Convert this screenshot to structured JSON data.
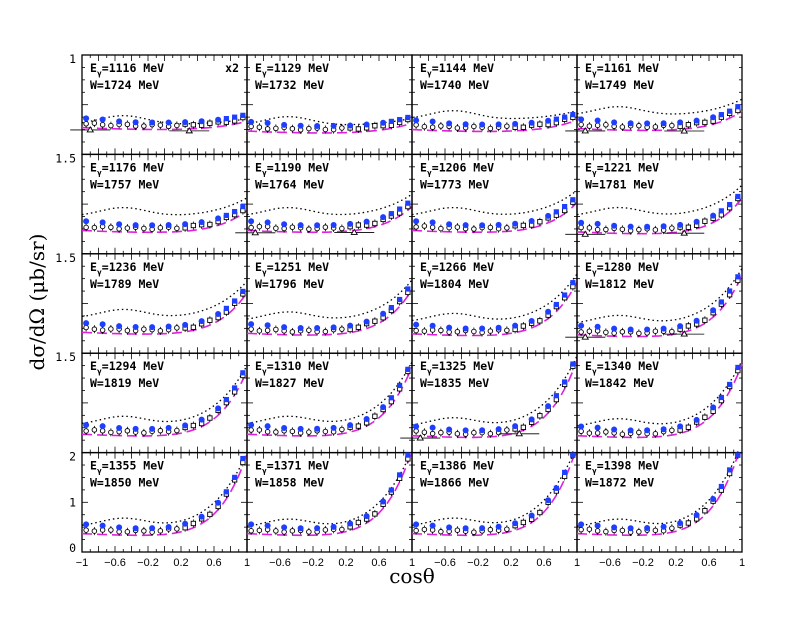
{
  "chart_data": {
    "type": "scatter",
    "layout": "4x5 panel grid",
    "xlabel": "cosθ",
    "ylabel": "dσ/dΩ (μb/sr)",
    "xlim": [
      -1,
      1
    ],
    "x_ticks": [
      "−1",
      "−0.6",
      "−0.2",
      "0.2",
      "0.6",
      "1"
    ],
    "x_ticks_inner": [
      "−0.6",
      "−0.2",
      "0.2",
      "0.6",
      "1"
    ],
    "y_ticks_panel1": [
      "1"
    ],
    "y_ticks_mid": [
      "1.5"
    ],
    "y_ticks_bottom": [
      "2",
      "1",
      "0"
    ],
    "colors": {
      "blue_points": "#1f3fff",
      "magenta_dash": "#e020e0",
      "dotted": "#000000",
      "data": "#000000"
    },
    "series_styles": [
      {
        "style": "filled blue circles"
      },
      {
        "style": "magenta dashed line"
      },
      {
        "style": "black dotted line"
      },
      {
        "style": "open black circles with error bars"
      },
      {
        "style": "open black squares with error bars"
      },
      {
        "style": "open triangles with horizontal bars"
      }
    ],
    "panels": [
      {
        "E": "E",
        "Esub": "γ",
        "Eval": "=1116 MeV",
        "W": "W=1724 MeV",
        "note": "x2",
        "base": 0.62,
        "dot": 0.6,
        "curv": 0.08
      },
      {
        "E": "E",
        "Esub": "γ",
        "Eval": "=1129 MeV",
        "W": "W=1732 MeV",
        "note": "",
        "base": 0.55,
        "dot": 0.58,
        "curv": 0.1
      },
      {
        "E": "E",
        "Esub": "γ",
        "Eval": "=1144 MeV",
        "W": "W=1740 MeV",
        "note": "",
        "base": 0.58,
        "dot": 0.7,
        "curv": 0.12
      },
      {
        "E": "E",
        "Esub": "γ",
        "Eval": "=1161 MeV",
        "W": "W=1749 MeV",
        "note": "",
        "base": 0.6,
        "dot": 0.78,
        "curv": 0.22
      },
      {
        "E": "E",
        "Esub": "γ",
        "Eval": "=1176 MeV",
        "W": "W=1757 MeV",
        "note": "",
        "base": 0.55,
        "dot": 0.75,
        "curv": 0.25
      },
      {
        "E": "E",
        "Esub": "γ",
        "Eval": "=1190 MeV",
        "W": "W=1764 MeV",
        "note": "",
        "base": 0.55,
        "dot": 0.75,
        "curv": 0.3
      },
      {
        "E": "E",
        "Esub": "γ",
        "Eval": "=1206 MeV",
        "W": "W=1773 MeV",
        "note": "",
        "base": 0.55,
        "dot": 0.75,
        "curv": 0.35
      },
      {
        "E": "E",
        "Esub": "γ",
        "Eval": "=1221 MeV",
        "W": "W=1781 MeV",
        "note": "",
        "base": 0.52,
        "dot": 0.75,
        "curv": 0.42
      },
      {
        "E": "E",
        "Esub": "γ",
        "Eval": "=1236 MeV",
        "W": "W=1789 MeV",
        "note": "",
        "base": 0.5,
        "dot": 0.7,
        "curv": 0.5
      },
      {
        "E": "E",
        "Esub": "γ",
        "Eval": "=1251 MeV",
        "W": "W=1796 MeV",
        "note": "",
        "base": 0.48,
        "dot": 0.65,
        "curv": 0.55
      },
      {
        "E": "E",
        "Esub": "γ",
        "Eval": "=1266 MeV",
        "W": "W=1804 MeV",
        "note": "",
        "base": 0.47,
        "dot": 0.62,
        "curv": 0.65
      },
      {
        "E": "E",
        "Esub": "γ",
        "Eval": "=1280 MeV",
        "W": "W=1812 MeV",
        "note": "",
        "base": 0.45,
        "dot": 0.58,
        "curv": 0.75
      },
      {
        "E": "E",
        "Esub": "γ",
        "Eval": "=1294 MeV",
        "W": "W=1819 MeV",
        "note": "",
        "base": 0.45,
        "dot": 0.55,
        "curv": 0.8
      },
      {
        "E": "E",
        "Esub": "γ",
        "Eval": "=1310 MeV",
        "W": "W=1827 MeV",
        "note": "",
        "base": 0.45,
        "dot": 0.55,
        "curv": 0.85
      },
      {
        "E": "E",
        "Esub": "γ",
        "Eval": "=1325 MeV",
        "W": "W=1835 MeV",
        "note": "",
        "base": 0.42,
        "dot": 0.52,
        "curv": 0.95
      },
      {
        "E": "E",
        "Esub": "γ",
        "Eval": "=1340 MeV",
        "W": "W=1842 MeV",
        "note": "",
        "base": 0.42,
        "dot": 0.5,
        "curv": 0.9
      },
      {
        "E": "E",
        "Esub": "γ",
        "Eval": "=1355 MeV",
        "W": "W=1850 MeV",
        "note": "",
        "base": 0.45,
        "dot": 0.5,
        "curv": 1.0
      },
      {
        "E": "E",
        "Esub": "γ",
        "Eval": "=1371 MeV",
        "W": "W=1858 MeV",
        "note": "",
        "base": 0.45,
        "dot": 0.48,
        "curv": 1.05
      },
      {
        "E": "E",
        "Esub": "γ",
        "Eval": "=1386 MeV",
        "W": "W=1866 MeV",
        "note": "",
        "base": 0.45,
        "dot": 0.5,
        "curv": 1.1
      },
      {
        "E": "E",
        "Esub": "γ",
        "Eval": "=1398 MeV",
        "W": "W=1872 MeV",
        "note": "",
        "base": 0.45,
        "dot": 0.48,
        "curv": 1.15
      }
    ],
    "cos_points": [
      -0.95,
      -0.85,
      -0.75,
      -0.65,
      -0.55,
      -0.45,
      -0.35,
      -0.25,
      -0.15,
      -0.05,
      0.05,
      0.15,
      0.25,
      0.35,
      0.45,
      0.55,
      0.65,
      0.75,
      0.85,
      0.95
    ],
    "ylim_panel": [
      0,
      2
    ]
  }
}
